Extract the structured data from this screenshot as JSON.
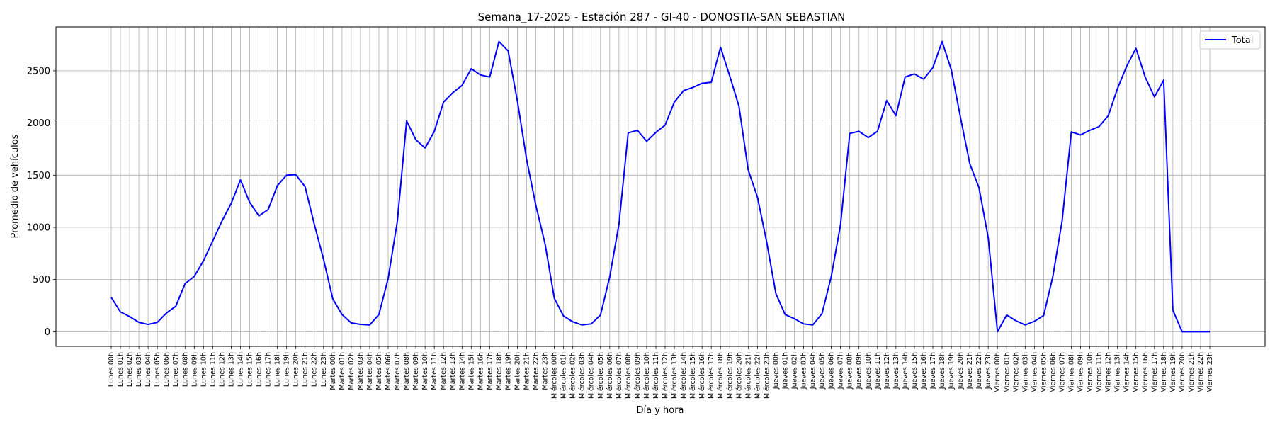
{
  "chart_data": {
    "type": "line",
    "title": "Semana_17-2025 - Estación 287 - GI-40  - DONOSTIA-SAN SEBASTIAN",
    "xlabel": "Día y hora",
    "ylabel": "Promedio de vehículos",
    "ylim": [
      -140,
      2920
    ],
    "yticks": [
      0,
      500,
      1000,
      1500,
      2000,
      2500
    ],
    "grid": true,
    "legend": "top-right",
    "categories": [
      "Lunes 00h",
      "Lunes 01h",
      "Lunes 02h",
      "Lunes 03h",
      "Lunes 04h",
      "Lunes 05h",
      "Lunes 06h",
      "Lunes 07h",
      "Lunes 08h",
      "Lunes 09h",
      "Lunes 10h",
      "Lunes 11h",
      "Lunes 12h",
      "Lunes 13h",
      "Lunes 14h",
      "Lunes 15h",
      "Lunes 16h",
      "Lunes 17h",
      "Lunes 18h",
      "Lunes 19h",
      "Lunes 20h",
      "Lunes 21h",
      "Lunes 22h",
      "Lunes 23h",
      "Martes 00h",
      "Martes 01h",
      "Martes 02h",
      "Martes 03h",
      "Martes 04h",
      "Martes 05h",
      "Martes 06h",
      "Martes 07h",
      "Martes 08h",
      "Martes 09h",
      "Martes 10h",
      "Martes 11h",
      "Martes 12h",
      "Martes 13h",
      "Martes 14h",
      "Martes 15h",
      "Martes 16h",
      "Martes 17h",
      "Martes 18h",
      "Martes 19h",
      "Martes 20h",
      "Martes 21h",
      "Martes 22h",
      "Martes 23h",
      "Miércoles 00h",
      "Miércoles 01h",
      "Miércoles 02h",
      "Miércoles 03h",
      "Miércoles 04h",
      "Miércoles 05h",
      "Miércoles 06h",
      "Miércoles 07h",
      "Miércoles 08h",
      "Miércoles 09h",
      "Miércoles 10h",
      "Miércoles 11h",
      "Miércoles 12h",
      "Miércoles 13h",
      "Miércoles 14h",
      "Miércoles 15h",
      "Miércoles 16h",
      "Miércoles 17h",
      "Miércoles 18h",
      "Miércoles 19h",
      "Miércoles 20h",
      "Miércoles 21h",
      "Miércoles 22h",
      "Miércoles 23h",
      "Jueves 00h",
      "Jueves 01h",
      "Jueves 02h",
      "Jueves 03h",
      "Jueves 04h",
      "Jueves 05h",
      "Jueves 06h",
      "Jueves 07h",
      "Jueves 08h",
      "Jueves 09h",
      "Jueves 10h",
      "Jueves 11h",
      "Jueves 12h",
      "Jueves 13h",
      "Jueves 14h",
      "Jueves 15h",
      "Jueves 16h",
      "Jueves 17h",
      "Jueves 18h",
      "Jueves 19h",
      "Jueves 20h",
      "Jueves 21h",
      "Jueves 22h",
      "Jueves 23h",
      "Viernes 00h",
      "Viernes 01h",
      "Viernes 02h",
      "Viernes 03h",
      "Viernes 04h",
      "Viernes 05h",
      "Viernes 06h",
      "Viernes 07h",
      "Viernes 08h",
      "Viernes 09h",
      "Viernes 10h",
      "Viernes 11h",
      "Viernes 12h",
      "Viernes 13h",
      "Viernes 14h",
      "Viernes 15h",
      "Viernes 16h",
      "Viernes 17h",
      "Viernes 18h",
      "Viernes 19h",
      "Viernes 20h",
      "Viernes 21h",
      "Viernes 22h",
      "Viernes 23h"
    ],
    "series": [
      {
        "name": "Total",
        "color": "#0000ff",
        "values": [
          330,
          190,
          145,
          90,
          70,
          90,
          180,
          245,
          460,
          530,
          680,
          870,
          1060,
          1230,
          1455,
          1240,
          1110,
          1170,
          1400,
          1500,
          1505,
          1390,
          1030,
          695,
          315,
          165,
          85,
          70,
          65,
          165,
          510,
          1060,
          2020,
          1840,
          1760,
          1920,
          2200,
          2290,
          2360,
          2520,
          2460,
          2440,
          2780,
          2690,
          2210,
          1650,
          1210,
          840,
          320,
          150,
          95,
          65,
          75,
          160,
          525,
          1030,
          1905,
          1930,
          1825,
          1910,
          1980,
          2200,
          2310,
          2340,
          2380,
          2390,
          2725,
          2450,
          2160,
          1550,
          1290,
          860,
          365,
          165,
          125,
          75,
          65,
          175,
          530,
          1025,
          1900,
          1920,
          1860,
          1920,
          2215,
          2070,
          2440,
          2470,
          2420,
          2530,
          2780,
          2510,
          2050,
          1610,
          1380,
          900,
          0,
          160,
          105,
          65,
          100,
          155,
          530,
          1060,
          1915,
          1885,
          1930,
          1965,
          2070,
          2330,
          2545,
          2715,
          2440,
          2250,
          2410,
          205,
          0,
          0,
          0,
          0
        ]
      }
    ]
  }
}
